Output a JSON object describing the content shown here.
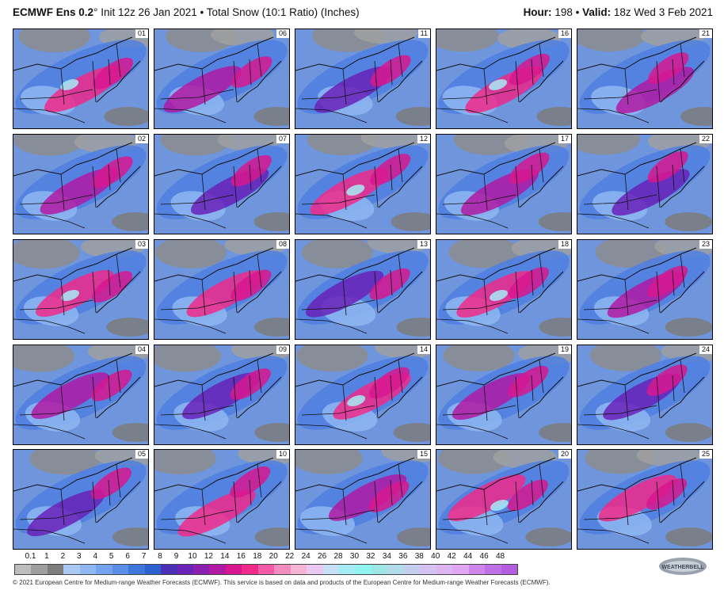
{
  "header": {
    "model": "ECMWF Ens 0.2",
    "degree": "°",
    "init": "Init 12z 26 Jan 2021",
    "bullet": "•",
    "product": "Total Snow (10:1 Ratio) (Inches)",
    "hour_label": "Hour:",
    "hour_value": "198",
    "valid_label": "Valid:",
    "valid_value": "18z Wed 3 Feb 2021"
  },
  "members": [
    "01",
    "02",
    "03",
    "04",
    "05",
    "06",
    "07",
    "08",
    "09",
    "10",
    "11",
    "12",
    "13",
    "14",
    "15",
    "16",
    "17",
    "18",
    "19",
    "20",
    "21",
    "22",
    "23",
    "24",
    "25"
  ],
  "legend": {
    "ticks": [
      "0.1",
      "1",
      "2",
      "3",
      "4",
      "5",
      "6",
      "7",
      "8",
      "9",
      "10",
      "12",
      "14",
      "16",
      "18",
      "20",
      "22",
      "24",
      "26",
      "28",
      "30",
      "32",
      "34",
      "36",
      "38",
      "40",
      "42",
      "44",
      "46",
      "48"
    ],
    "colors": [
      "#bdbdbd",
      "#9e9e9e",
      "#7d7d7d",
      "#a9c8f4",
      "#8fb7f2",
      "#74a3ef",
      "#5a8ee8",
      "#3e78df",
      "#2c5fcf",
      "#4b2fb6",
      "#6a22b8",
      "#8a1fb0",
      "#b01aa3",
      "#d8168f",
      "#f02a8a",
      "#f45aa6",
      "#f58cbf",
      "#f6b4d4",
      "#e9c9ef",
      "#c7e0f8",
      "#a6ecf5",
      "#8ff3f0",
      "#9ee6e4",
      "#b2dcea",
      "#c4cff0",
      "#d3c2f2",
      "#dcb5f2",
      "#e0a6f1",
      "#cf86ec",
      "#c070e6",
      "#b45de0"
    ]
  },
  "footer": "© 2021 European Centre for Medium-range Weather Forecasts (ECMWF). This service is based on data and products of the European Centre for Medium-range Weather Forecasts (ECMWF).",
  "logo_text": "WEATHERBELL"
}
